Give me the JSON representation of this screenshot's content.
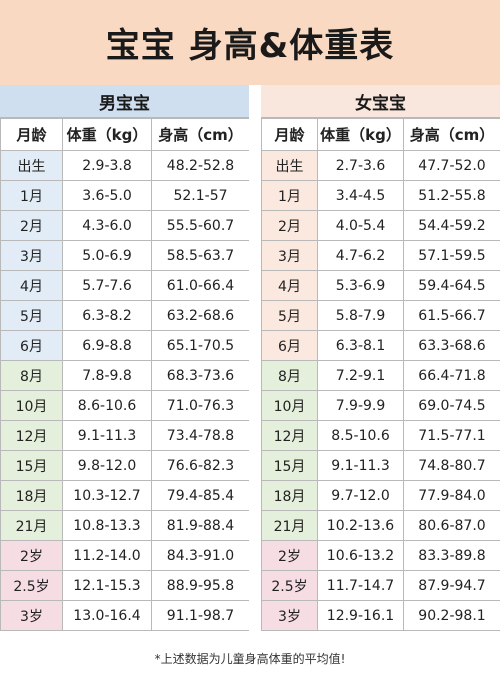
{
  "title": "宝宝 身高&体重表",
  "boys": {
    "title": "男宝宝",
    "headers": [
      "月龄",
      "体重（kg）",
      "身高（cm）"
    ],
    "rows": [
      [
        "出生",
        "2.9-3.8",
        "48.2-52.8"
      ],
      [
        "1月",
        "3.6-5.0",
        "52.1-57"
      ],
      [
        "2月",
        "4.3-6.0",
        "55.5-60.7"
      ],
      [
        "3月",
        "5.0-6.9",
        "58.5-63.7"
      ],
      [
        "4月",
        "5.7-7.6",
        "61.0-66.4"
      ],
      [
        "5月",
        "6.3-8.2",
        "63.2-68.6"
      ],
      [
        "6月",
        "6.9-8.8",
        "65.1-70.5"
      ],
      [
        "8月",
        "7.8-9.8",
        "68.3-73.6"
      ],
      [
        "10月",
        "8.6-10.6",
        "71.0-76.3"
      ],
      [
        "12月",
        "9.1-11.3",
        "73.4-78.8"
      ],
      [
        "15月",
        "9.8-12.0",
        "76.6-82.3"
      ],
      [
        "18月",
        "10.3-12.7",
        "79.4-85.4"
      ],
      [
        "21月",
        "10.8-13.3",
        "81.9-88.4"
      ],
      [
        "2岁",
        "11.2-14.0",
        "84.3-91.0"
      ],
      [
        "2.5岁",
        "12.1-15.3",
        "88.9-95.8"
      ],
      [
        "3岁",
        "13.0-16.4",
        "91.1-98.7"
      ]
    ]
  },
  "girls": {
    "title": "女宝宝",
    "headers": [
      "月龄",
      "体重（kg）",
      "身高（cm）"
    ],
    "rows": [
      [
        "出生",
        "2.7-3.6",
        "47.7-52.0"
      ],
      [
        "1月",
        "3.4-4.5",
        "51.2-55.8"
      ],
      [
        "2月",
        "4.0-5.4",
        "54.4-59.2"
      ],
      [
        "3月",
        "4.7-6.2",
        "57.1-59.5"
      ],
      [
        "4月",
        "5.3-6.9",
        "59.4-64.5"
      ],
      [
        "5月",
        "5.8-7.9",
        "61.5-66.7"
      ],
      [
        "6月",
        "6.3-8.1",
        "63.3-68.6"
      ],
      [
        "8月",
        "7.2-9.1",
        "66.4-71.8"
      ],
      [
        "10月",
        "7.9-9.9",
        "69.0-74.5"
      ],
      [
        "12月",
        "8.5-10.6",
        "71.5-77.1"
      ],
      [
        "15月",
        "9.1-11.3",
        "74.8-80.7"
      ],
      [
        "18月",
        "9.7-12.0",
        "77.9-84.0"
      ],
      [
        "21月",
        "10.2-13.6",
        "80.6-87.0"
      ],
      [
        "2岁",
        "10.6-13.2",
        "83.3-89.8"
      ],
      [
        "2.5岁",
        "11.7-14.7",
        "87.9-94.7"
      ],
      [
        "3岁",
        "12.9-16.1",
        "90.2-98.1"
      ]
    ]
  },
  "colors": {
    "title_bg": "#f9d9c2",
    "boys_header_bg": "#cfdff0",
    "girls_header_bg": "#f9e7dd",
    "band_0_6m": "#e2ecf6",
    "band_8_21m": "#e4efdc",
    "band_2_3y": "#f6dde4",
    "band_0_6m_girls": "#fbe9df",
    "border": "#b9b9b9"
  },
  "footnote": "*上述数据为儿童身高体重的平均值!"
}
